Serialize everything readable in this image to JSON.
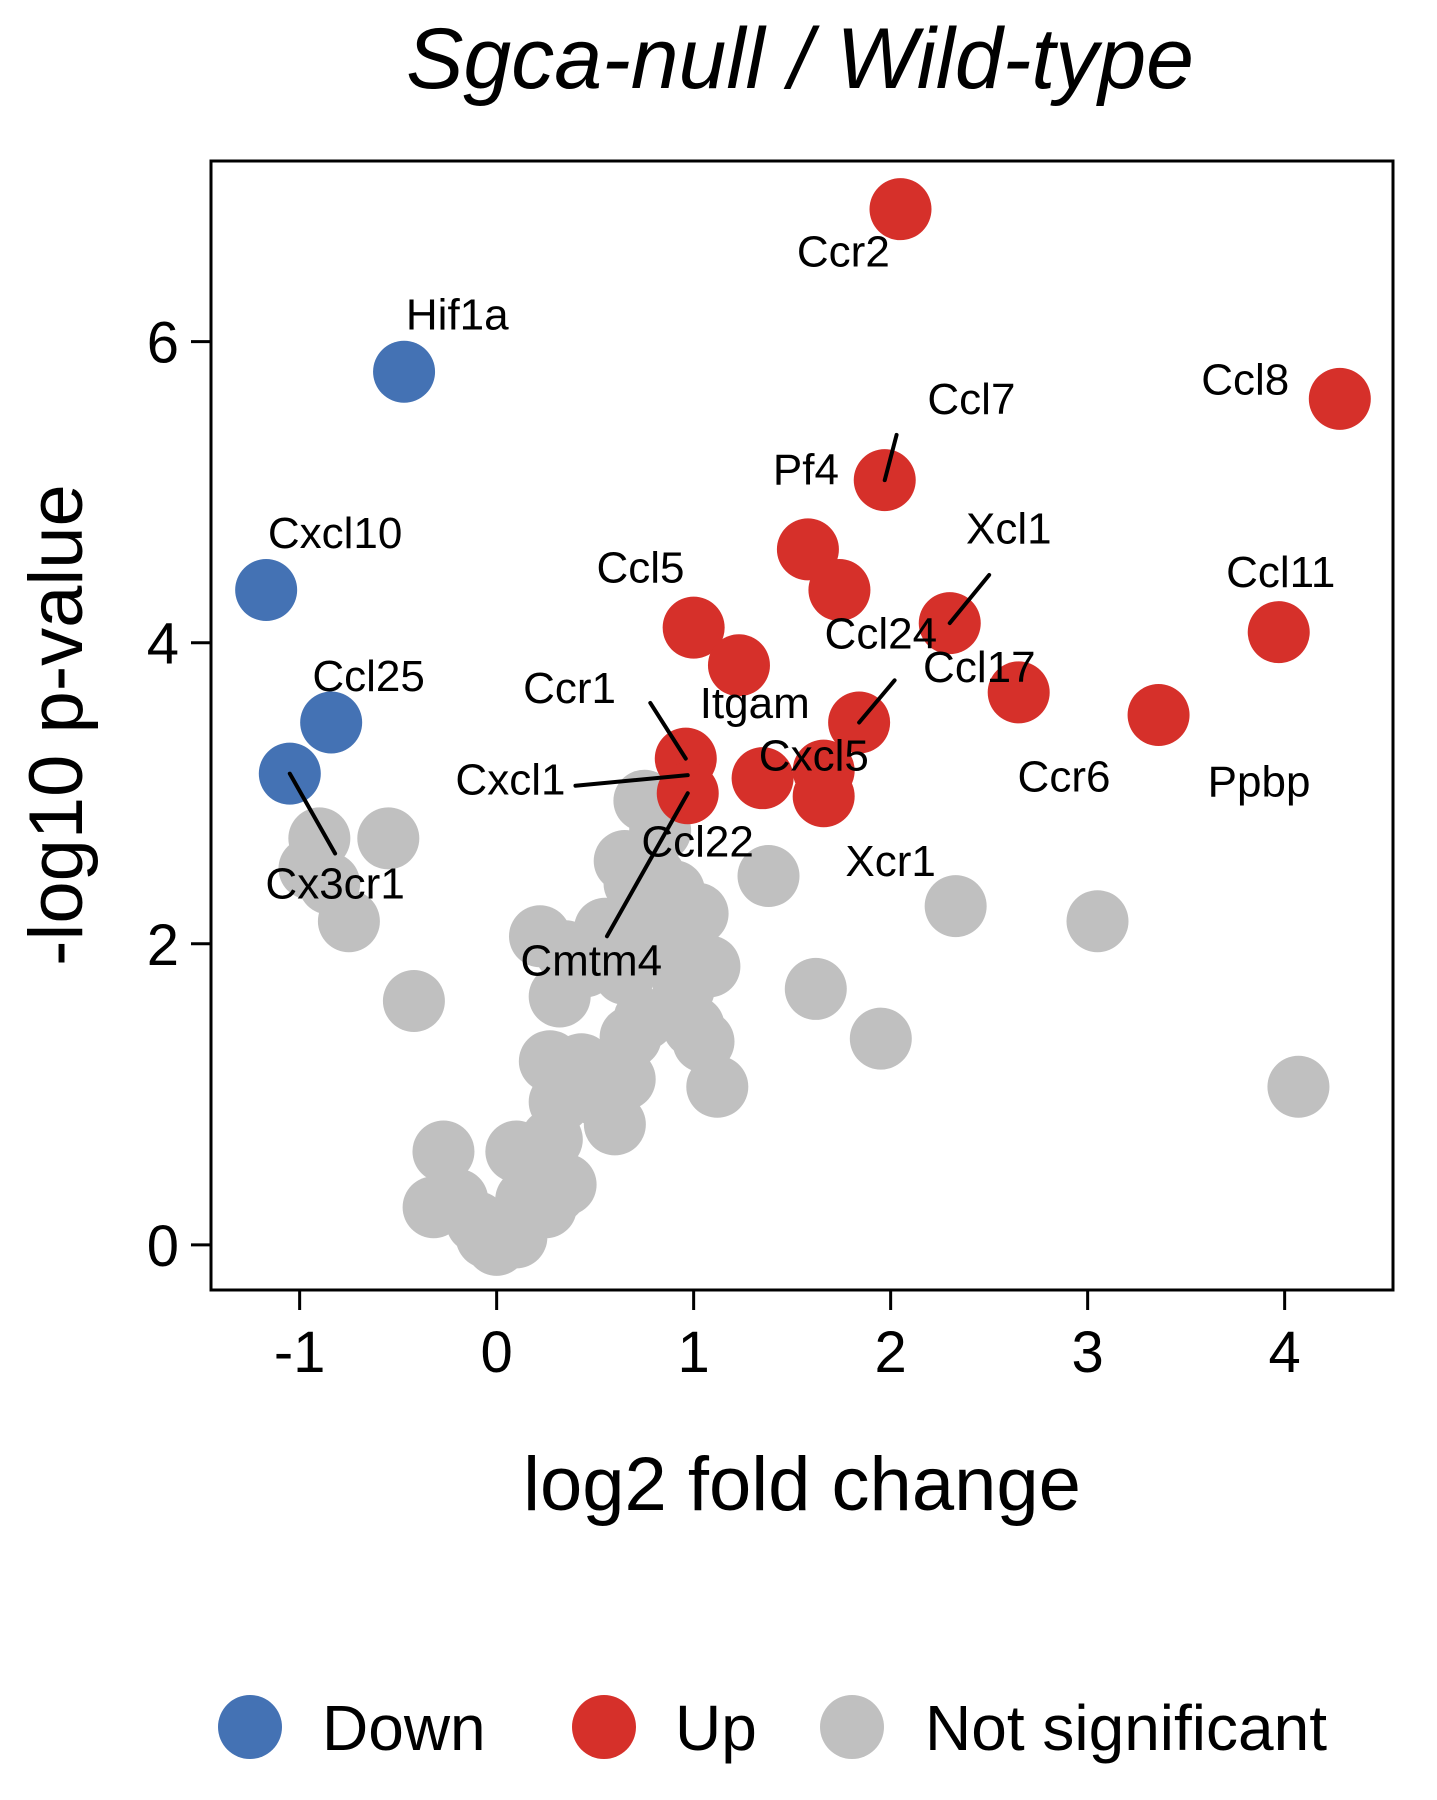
{
  "chart_data": {
    "type": "scatter",
    "title": "Sgca-null / Wild-type",
    "xlabel": "log2 fold change",
    "ylabel": "-log10 p-value",
    "xlim": [
      -1.45,
      4.55
    ],
    "ylim": [
      -0.3,
      7.2
    ],
    "xticks": [
      -1,
      0,
      1,
      2,
      3,
      4
    ],
    "yticks": [
      0,
      2,
      4,
      6
    ],
    "grid": false,
    "legend_position": "bottom",
    "legend": [
      {
        "name": "Down",
        "color": "#4472b4"
      },
      {
        "name": "Up",
        "color": "#d6302a"
      },
      {
        "name": "Not significant",
        "color": "#c0c0c0"
      }
    ],
    "series": [
      {
        "name": "Not significant",
        "color": "#c0c0c0",
        "points": [
          {
            "x": -0.9,
            "y": 2.7
          },
          {
            "x": -0.95,
            "y": 2.5
          },
          {
            "x": -0.85,
            "y": 2.4
          },
          {
            "x": -0.75,
            "y": 2.15
          },
          {
            "x": -0.55,
            "y": 2.7
          },
          {
            "x": -0.42,
            "y": 1.62
          },
          {
            "x": -0.27,
            "y": 0.62
          },
          {
            "x": -0.32,
            "y": 0.25
          },
          {
            "x": -0.2,
            "y": 0.3
          },
          {
            "x": -0.1,
            "y": 0.15
          },
          {
            "x": -0.05,
            "y": 0.05
          },
          {
            "x": 0.0,
            "y": 0.0
          },
          {
            "x": 0.05,
            "y": 0.1
          },
          {
            "x": 0.1,
            "y": 0.05
          },
          {
            "x": 0.15,
            "y": 0.3
          },
          {
            "x": 0.22,
            "y": 0.4
          },
          {
            "x": 0.25,
            "y": 0.25
          },
          {
            "x": 0.3,
            "y": 0.35
          },
          {
            "x": 0.35,
            "y": 0.4
          },
          {
            "x": 0.1,
            "y": 0.62
          },
          {
            "x": 0.2,
            "y": 0.6
          },
          {
            "x": 0.28,
            "y": 0.7
          },
          {
            "x": 0.32,
            "y": 0.95
          },
          {
            "x": 0.27,
            "y": 1.22
          },
          {
            "x": 0.38,
            "y": 1.05
          },
          {
            "x": 0.43,
            "y": 1.2
          },
          {
            "x": 0.5,
            "y": 1.0
          },
          {
            "x": 0.6,
            "y": 0.8
          },
          {
            "x": 0.65,
            "y": 1.1
          },
          {
            "x": 0.68,
            "y": 1.38
          },
          {
            "x": 0.75,
            "y": 1.5
          },
          {
            "x": 0.32,
            "y": 1.65
          },
          {
            "x": 0.22,
            "y": 2.05
          },
          {
            "x": 0.35,
            "y": 1.95
          },
          {
            "x": 0.45,
            "y": 1.85
          },
          {
            "x": 0.55,
            "y": 2.1
          },
          {
            "x": 0.65,
            "y": 1.8
          },
          {
            "x": 0.7,
            "y": 2.05
          },
          {
            "x": 0.7,
            "y": 2.4
          },
          {
            "x": 0.65,
            "y": 2.55
          },
          {
            "x": 0.8,
            "y": 2.45
          },
          {
            "x": 0.78,
            "y": 2.2
          },
          {
            "x": 0.9,
            "y": 2.35
          },
          {
            "x": 0.95,
            "y": 2.05
          },
          {
            "x": 1.02,
            "y": 2.2
          },
          {
            "x": 0.92,
            "y": 1.9
          },
          {
            "x": 1.08,
            "y": 1.85
          },
          {
            "x": 0.95,
            "y": 1.7
          },
          {
            "x": 1.0,
            "y": 1.45
          },
          {
            "x": 1.05,
            "y": 1.35
          },
          {
            "x": 1.12,
            "y": 1.05
          },
          {
            "x": 0.75,
            "y": 2.95
          },
          {
            "x": 0.83,
            "y": 2.75
          },
          {
            "x": 1.38,
            "y": 2.45
          },
          {
            "x": 1.62,
            "y": 1.7
          },
          {
            "x": 1.95,
            "y": 1.37
          },
          {
            "x": 2.33,
            "y": 2.25
          },
          {
            "x": 3.05,
            "y": 2.15
          },
          {
            "x": 4.07,
            "y": 1.05
          }
        ]
      },
      {
        "name": "Down",
        "color": "#4472b4",
        "points": [
          {
            "x": -0.47,
            "y": 5.8,
            "label": "Hif1a"
          },
          {
            "x": -1.17,
            "y": 4.35,
            "label": "Cxcl10"
          },
          {
            "x": -0.84,
            "y": 3.47,
            "label": "Ccl25"
          },
          {
            "x": -1.05,
            "y": 3.13,
            "label": "Cx3cr1"
          }
        ]
      },
      {
        "name": "Up",
        "color": "#d6302a",
        "points": [
          {
            "x": 2.05,
            "y": 6.88,
            "label": "Ccr2"
          },
          {
            "x": 4.28,
            "y": 5.62,
            "label": "Ccl8"
          },
          {
            "x": 1.97,
            "y": 5.08,
            "label": "Ccl7"
          },
          {
            "x": 1.58,
            "y": 4.62,
            "label": "Pf4"
          },
          {
            "x": 1.74,
            "y": 4.35
          },
          {
            "x": 2.3,
            "y": 4.13,
            "label": "Xcl1"
          },
          {
            "x": 3.97,
            "y": 4.07,
            "label": "Ccl11"
          },
          {
            "x": 1.0,
            "y": 4.1,
            "label": "Ccl5"
          },
          {
            "x": 1.23,
            "y": 3.85,
            "label": "Itgam"
          },
          {
            "x": 1.84,
            "y": 3.47,
            "label": "Ccl24"
          },
          {
            "x": 2.65,
            "y": 3.67,
            "label": "Ccl17"
          },
          {
            "x": 3.36,
            "y": 3.52,
            "label": "Ppbp"
          },
          {
            "x": 0.96,
            "y": 3.23,
            "label": "Ccr1"
          },
          {
            "x": 0.97,
            "y": 3.0,
            "label": "Cxcl1"
          },
          {
            "x": 1.35,
            "y": 3.1,
            "label": "Cxcl5"
          },
          {
            "x": 1.66,
            "y": 2.98,
            "label": "Ccr6"
          },
          {
            "x": 1.66,
            "y": 3.15
          }
        ]
      }
    ],
    "annotations": [
      {
        "text": "Ccr2",
        "x": 1.76,
        "y": 6.5
      },
      {
        "text": "Hif1a",
        "x": -0.2,
        "y": 6.08
      },
      {
        "text": "Ccl7",
        "x": 2.41,
        "y": 5.52
      },
      {
        "text": "Ccl8",
        "x": 3.8,
        "y": 5.65
      },
      {
        "text": "Pf4",
        "x": 1.57,
        "y": 5.05
      },
      {
        "text": "Xcl1",
        "x": 2.6,
        "y": 4.66
      },
      {
        "text": "Cxcl10",
        "x": -0.82,
        "y": 4.63
      },
      {
        "text": "Ccl5",
        "x": 0.73,
        "y": 4.4
      },
      {
        "text": "Ccl11",
        "x": 3.98,
        "y": 4.37
      },
      {
        "text": "Ccl24",
        "x": 1.95,
        "y": 3.96
      },
      {
        "text": "Ccl17",
        "x": 2.45,
        "y": 3.74
      },
      {
        "text": "Ccl25",
        "x": -0.65,
        "y": 3.68
      },
      {
        "text": "Ccr1",
        "x": 0.37,
        "y": 3.6
      },
      {
        "text": "Itgam",
        "x": 1.31,
        "y": 3.5
      },
      {
        "text": "Cxcl5",
        "x": 1.61,
        "y": 3.15
      },
      {
        "text": "Ccr6",
        "x": 2.88,
        "y": 3.01
      },
      {
        "text": "Ppbp",
        "x": 3.87,
        "y": 2.98
      },
      {
        "text": "Cxcl1",
        "x": 0.07,
        "y": 2.99
      },
      {
        "text": "Ccl22",
        "x": 1.02,
        "y": 2.58
      },
      {
        "text": "Xcr1",
        "x": 2.0,
        "y": 2.45
      },
      {
        "text": "Cx3cr1",
        "x": -0.82,
        "y": 2.3
      },
      {
        "text": "Cmtm4",
        "x": 0.48,
        "y": 1.79
      }
    ],
    "label_lines": [
      {
        "x1": -1.05,
        "y1": 3.13,
        "x2": -0.82,
        "y2": 2.6
      },
      {
        "x1": 0.96,
        "y1": 3.23,
        "x2": 0.78,
        "y2": 3.6
      },
      {
        "x1": 0.97,
        "y1": 3.12,
        "x2": 0.4,
        "y2": 3.05
      },
      {
        "x1": 0.97,
        "y1": 3.0,
        "x2": 0.56,
        "y2": 2.05
      },
      {
        "x1": 1.97,
        "y1": 5.08,
        "x2": 2.03,
        "y2": 5.38
      },
      {
        "x1": 2.3,
        "y1": 4.13,
        "x2": 2.5,
        "y2": 4.45
      },
      {
        "x1": 1.84,
        "y1": 3.47,
        "x2": 2.02,
        "y2": 3.75
      }
    ]
  }
}
